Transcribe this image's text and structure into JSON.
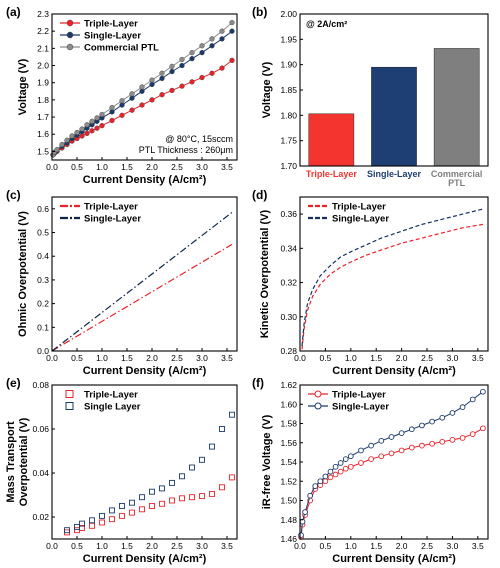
{
  "chart_data": [
    {
      "panel": "(a)",
      "type": "line",
      "xlabel": "Current Density (A/cm²)",
      "ylabel": "Voltage (V)",
      "xlim": [
        0,
        3.7
      ],
      "ylim": [
        1.45,
        2.3
      ],
      "xticks": [
        "0.0",
        "0.5",
        "1.0",
        "1.5",
        "2.0",
        "2.5",
        "3.0",
        "3.5"
      ],
      "yticks": [
        "1.5",
        "1.6",
        "1.7",
        "1.8",
        "1.9",
        "2.0",
        "2.1",
        "2.2",
        "2.3"
      ],
      "annotations": [
        "@ 80°C, 15sccm",
        "PTL Thickness : 260μm"
      ],
      "legend_position": "top-left",
      "series": [
        {
          "name": "Triple-Layer",
          "color": "#e8232a",
          "marker": "circle-filled",
          "x": [
            0.02,
            0.05,
            0.1,
            0.2,
            0.3,
            0.4,
            0.5,
            0.6,
            0.7,
            0.8,
            0.9,
            1.0,
            1.2,
            1.4,
            1.6,
            1.8,
            2.0,
            2.2,
            2.4,
            2.6,
            2.8,
            3.0,
            3.2,
            3.4,
            3.6
          ],
          "y": [
            1.48,
            1.49,
            1.5,
            1.52,
            1.54,
            1.56,
            1.575,
            1.59,
            1.605,
            1.62,
            1.635,
            1.65,
            1.68,
            1.71,
            1.74,
            1.77,
            1.8,
            1.83,
            1.855,
            1.88,
            1.905,
            1.93,
            1.955,
            1.985,
            2.03
          ]
        },
        {
          "name": "Single-Layer",
          "color": "#1b3a6b",
          "marker": "circle-filled",
          "x": [
            0.02,
            0.05,
            0.1,
            0.2,
            0.3,
            0.4,
            0.5,
            0.6,
            0.7,
            0.8,
            0.9,
            1.0,
            1.2,
            1.4,
            1.6,
            1.8,
            2.0,
            2.2,
            2.4,
            2.6,
            2.8,
            3.0,
            3.2,
            3.4,
            3.6
          ],
          "y": [
            1.48,
            1.49,
            1.505,
            1.53,
            1.55,
            1.575,
            1.595,
            1.615,
            1.635,
            1.655,
            1.675,
            1.695,
            1.73,
            1.77,
            1.81,
            1.85,
            1.89,
            1.925,
            1.965,
            2.0,
            2.04,
            2.075,
            2.115,
            2.155,
            2.2
          ]
        },
        {
          "name": "Commercial PTL",
          "color": "#8c8c8c",
          "marker": "circle-filled",
          "x": [
            0.02,
            0.05,
            0.1,
            0.2,
            0.3,
            0.4,
            0.5,
            0.6,
            0.7,
            0.8,
            0.9,
            1.0,
            1.2,
            1.4,
            1.6,
            1.8,
            2.0,
            2.2,
            2.4,
            2.6,
            2.8,
            3.0,
            3.2,
            3.4,
            3.6
          ],
          "y": [
            1.48,
            1.495,
            1.51,
            1.54,
            1.565,
            1.59,
            1.61,
            1.63,
            1.655,
            1.675,
            1.695,
            1.715,
            1.755,
            1.795,
            1.835,
            1.875,
            1.915,
            1.955,
            1.995,
            2.035,
            2.075,
            2.115,
            2.155,
            2.2,
            2.25
          ]
        }
      ]
    },
    {
      "panel": "(b)",
      "type": "bar",
      "ylabel": "Voltage (V)",
      "ylim": [
        1.7,
        2.0
      ],
      "yticks": [
        "1.70",
        "1.75",
        "1.80",
        "1.85",
        "1.90",
        "1.95",
        "2.00"
      ],
      "annotation": "@ 2A/cm²",
      "categories": [
        "Triple-Layer",
        "Single-Layer",
        "Commercial PTL"
      ],
      "category_lines": [
        [
          "Triple-Layer"
        ],
        [
          "Single-Layer"
        ],
        [
          "Commercial",
          "PTL"
        ]
      ],
      "values": [
        1.803,
        1.895,
        1.932
      ],
      "colors": [
        "#f4342f",
        "#1d3f73",
        "#7f7f7f"
      ]
    },
    {
      "panel": "(c)",
      "type": "line",
      "xlabel": "Current Density (A/cm²)",
      "ylabel": "Ohmic Overpotential (V)",
      "xlim": [
        0,
        3.7
      ],
      "ylim": [
        0,
        0.65
      ],
      "xticks": [
        "0.0",
        "0.5",
        "1.0",
        "1.5",
        "2.0",
        "2.5",
        "3.0",
        "3.5"
      ],
      "yticks": [
        "0.0",
        "0.1",
        "0.2",
        "0.3",
        "0.4",
        "0.5",
        "0.6"
      ],
      "legend_position": "top-left",
      "series": [
        {
          "name": "Triple-Layer",
          "color": "#e8232a",
          "dash": "dashdot",
          "x": [
            0,
            3.6
          ],
          "y": [
            0,
            0.45
          ]
        },
        {
          "name": "Single-Layer",
          "color": "#0f2548",
          "dash": "dashdot",
          "x": [
            0,
            3.6
          ],
          "y": [
            0,
            0.585
          ]
        }
      ]
    },
    {
      "panel": "(d)",
      "type": "line",
      "xlabel": "Current Density (A/cm²)",
      "ylabel": "Kinetic Overpotential (V)",
      "xlim": [
        0,
        3.7
      ],
      "ylim": [
        0.28,
        0.37
      ],
      "xticks": [
        "0.0",
        "0.5",
        "1.0",
        "1.5",
        "2.0",
        "2.5",
        "3.0",
        "3.5"
      ],
      "yticks": [
        "0.28",
        "0.30",
        "0.32",
        "0.34",
        "0.36"
      ],
      "legend_position": "top-left",
      "series": [
        {
          "name": "Triple-Layer",
          "color": "#e8232a",
          "dash": "dashed",
          "x": [
            0.04,
            0.08,
            0.15,
            0.25,
            0.4,
            0.6,
            0.8,
            1.0,
            1.3,
            1.6,
            2.0,
            2.4,
            2.8,
            3.2,
            3.6
          ],
          "y": [
            0.281,
            0.293,
            0.304,
            0.312,
            0.319,
            0.325,
            0.329,
            0.332,
            0.336,
            0.339,
            0.343,
            0.346,
            0.349,
            0.352,
            0.354
          ]
        },
        {
          "name": "Single-Layer",
          "color": "#13305e",
          "dash": "dashed",
          "x": [
            0.04,
            0.08,
            0.15,
            0.25,
            0.4,
            0.6,
            0.8,
            1.0,
            1.3,
            1.6,
            2.0,
            2.4,
            2.8,
            3.2,
            3.6
          ],
          "y": [
            0.283,
            0.296,
            0.308,
            0.316,
            0.324,
            0.33,
            0.335,
            0.338,
            0.342,
            0.346,
            0.35,
            0.354,
            0.357,
            0.36,
            0.363
          ]
        }
      ]
    },
    {
      "panel": "(e)",
      "type": "scatter",
      "xlabel": "Current Density (A/cm²)",
      "ylabel_lines": [
        "Mass Transport",
        "Overpotential (V)"
      ],
      "xlim": [
        0,
        3.7
      ],
      "ylim": [
        0.01,
        0.08
      ],
      "xticks": [
        "0.0",
        "0.5",
        "1.0",
        "1.5",
        "2.0",
        "2.5",
        "3.0",
        "3.5"
      ],
      "yticks": [
        "0.02",
        "0.04",
        "0.06",
        "0.08"
      ],
      "legend_position": "top-left",
      "series": [
        {
          "name": "Triple-Layer",
          "color": "#e8232a",
          "marker": "square-open",
          "x": [
            0.3,
            0.5,
            0.6,
            0.8,
            1.0,
            1.2,
            1.4,
            1.6,
            1.8,
            2.0,
            2.2,
            2.4,
            2.6,
            2.8,
            3.0,
            3.2,
            3.4,
            3.6
          ],
          "y": [
            0.013,
            0.014,
            0.015,
            0.016,
            0.0175,
            0.019,
            0.0205,
            0.022,
            0.0235,
            0.025,
            0.026,
            0.0275,
            0.0285,
            0.029,
            0.0295,
            0.0305,
            0.0335,
            0.038
          ]
        },
        {
          "name": "Single Layer",
          "color": "#1b3a6b",
          "marker": "square-open",
          "x": [
            0.3,
            0.5,
            0.6,
            0.8,
            1.0,
            1.2,
            1.4,
            1.6,
            1.8,
            2.0,
            2.2,
            2.4,
            2.6,
            2.8,
            3.0,
            3.2,
            3.4,
            3.6
          ],
          "y": [
            0.014,
            0.0155,
            0.017,
            0.0185,
            0.0205,
            0.023,
            0.025,
            0.0265,
            0.029,
            0.0315,
            0.033,
            0.0355,
            0.0385,
            0.0425,
            0.046,
            0.052,
            0.06,
            0.0665
          ]
        }
      ]
    },
    {
      "panel": "(f)",
      "type": "line",
      "xlabel": "Current Density (A/cm²)",
      "ylabel": "iR-free Voltage (V)",
      "xlim": [
        0,
        3.7
      ],
      "ylim": [
        1.46,
        1.62
      ],
      "xticks": [
        "0.0",
        "0.5",
        "1.0",
        "1.5",
        "2.0",
        "2.5",
        "3.0",
        "3.5"
      ],
      "yticks": [
        "1.46",
        "1.48",
        "1.50",
        "1.52",
        "1.54",
        "1.56",
        "1.58",
        "1.60",
        "1.62"
      ],
      "legend_position": "top-left",
      "series": [
        {
          "name": "Triple-Layer",
          "color": "#e8232a",
          "marker": "circle-open",
          "x": [
            0.02,
            0.05,
            0.1,
            0.2,
            0.3,
            0.4,
            0.5,
            0.6,
            0.7,
            0.8,
            0.9,
            1.0,
            1.2,
            1.4,
            1.6,
            1.8,
            2.0,
            2.2,
            2.4,
            2.6,
            2.8,
            3.0,
            3.2,
            3.4,
            3.6
          ],
          "y": [
            1.462,
            1.475,
            1.485,
            1.5,
            1.512,
            1.516,
            1.52,
            1.524,
            1.527,
            1.53,
            1.533,
            1.535,
            1.539,
            1.543,
            1.546,
            1.549,
            1.552,
            1.555,
            1.557,
            1.559,
            1.561,
            1.563,
            1.565,
            1.569,
            1.575
          ]
        },
        {
          "name": "Single-Layer",
          "color": "#1b3a6b",
          "marker": "circle-open",
          "x": [
            0.02,
            0.05,
            0.1,
            0.2,
            0.3,
            0.4,
            0.5,
            0.6,
            0.7,
            0.8,
            0.9,
            1.0,
            1.2,
            1.4,
            1.6,
            1.8,
            2.0,
            2.2,
            2.4,
            2.6,
            2.8,
            3.0,
            3.2,
            3.4,
            3.6
          ],
          "y": [
            1.464,
            1.478,
            1.488,
            1.505,
            1.515,
            1.52,
            1.525,
            1.53,
            1.535,
            1.539,
            1.543,
            1.546,
            1.552,
            1.557,
            1.562,
            1.566,
            1.57,
            1.574,
            1.578,
            1.582,
            1.586,
            1.591,
            1.597,
            1.605,
            1.613
          ]
        }
      ]
    }
  ]
}
